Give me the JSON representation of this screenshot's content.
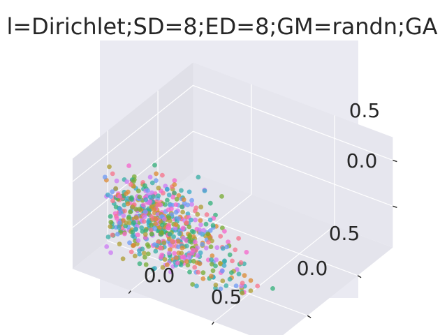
{
  "chart_data": {
    "type": "scatter",
    "projection": "3d",
    "title": "l=Dirichlet;SD=8;ED=8;GM=randn;GA",
    "xlabel": "",
    "ylabel": "",
    "zlabel": "",
    "grid": true,
    "legend": "none",
    "x_ticks": [
      "0.0",
      "0.5"
    ],
    "y_ticks": [
      "0.0",
      "0.5"
    ],
    "z_ticks": [
      "0.0",
      "0.5"
    ],
    "xlim": [
      -0.35,
      0.85
    ],
    "ylim": [
      -0.35,
      0.85
    ],
    "zlim": [
      -0.45,
      0.75
    ],
    "point_count": 640,
    "colors": [
      "#f77189",
      "#dc8932",
      "#ae9d31",
      "#77ab31",
      "#33b07a",
      "#36ada4",
      "#38a9c5",
      "#6e9bf4",
      "#cc7af4",
      "#f565cc"
    ]
  }
}
